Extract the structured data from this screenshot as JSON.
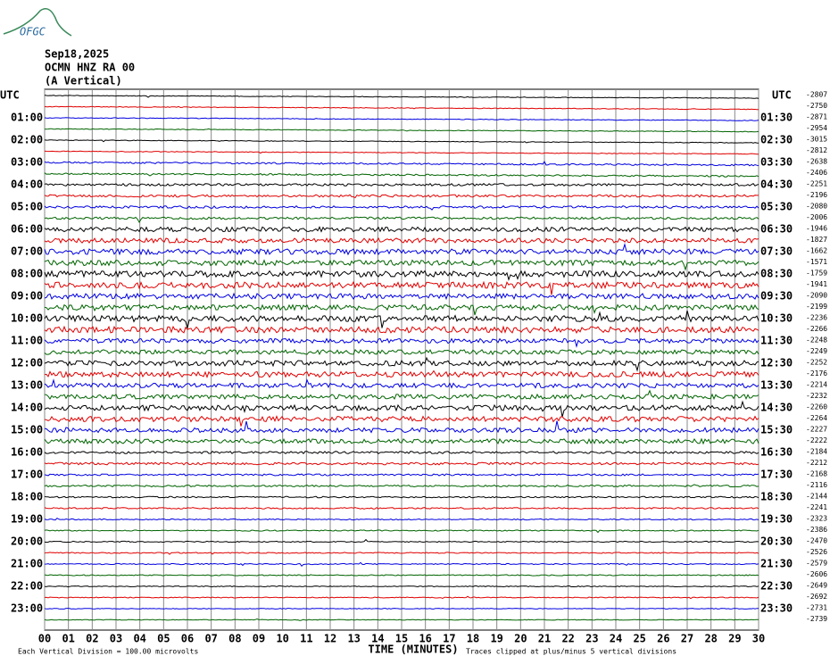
{
  "header": {
    "logo": "OFGC",
    "date": "Sep18,2025",
    "station": "OCMN HNZ RA 00",
    "component": "(A Vertical)"
  },
  "left_axis": {
    "title": "UTC",
    "labels": [
      "01:00",
      "02:00",
      "03:00",
      "04:00",
      "05:00",
      "06:00",
      "07:00",
      "08:00",
      "09:00",
      "10:00",
      "11:00",
      "12:00",
      "13:00",
      "14:00",
      "15:00",
      "16:00",
      "17:00",
      "18:00",
      "19:00",
      "20:00",
      "21:00",
      "22:00",
      "23:00"
    ]
  },
  "right_axis": {
    "title": "UTC",
    "labels": [
      "01:30",
      "02:30",
      "03:30",
      "04:30",
      "05:30",
      "06:30",
      "07:30",
      "08:30",
      "09:30",
      "10:30",
      "11:30",
      "12:30",
      "13:30",
      "14:30",
      "15:30",
      "16:30",
      "17:30",
      "18:30",
      "19:30",
      "20:30",
      "21:30",
      "22:30",
      "23:30"
    ]
  },
  "trace_offsets": [
    -2807,
    -2750,
    -2871,
    -2954,
    -3015,
    -2812,
    -2638,
    -2406,
    -2251,
    -2196,
    -2080,
    -2006,
    -1946,
    -1827,
    -1662,
    -1571,
    -1759,
    -1941,
    -2090,
    -2199,
    -2236,
    -2266,
    -2248,
    -2249,
    -2252,
    -2176,
    -2214,
    -2232,
    -2260,
    -2264,
    -2227,
    -2222,
    -2184,
    -2212,
    -2168,
    -2116,
    -2144,
    -2241,
    -2323,
    -2386,
    -2470,
    -2526,
    -2579,
    -2606,
    -2649,
    -2692,
    -2731,
    -2739
  ],
  "x_axis": {
    "title": "TIME (MINUTES)",
    "labels": [
      "00",
      "01",
      "02",
      "03",
      "04",
      "05",
      "06",
      "07",
      "08",
      "09",
      "10",
      "11",
      "12",
      "13",
      "14",
      "15",
      "16",
      "17",
      "18",
      "19",
      "20",
      "21",
      "22",
      "23",
      "24",
      "25",
      "26",
      "27",
      "28",
      "29",
      "30"
    ]
  },
  "footer": {
    "scale": "Each Vertical Division =  100.00 microvolts",
    "clip_note": "Traces clipped at plus/minus 5 vertical divisions"
  }
}
